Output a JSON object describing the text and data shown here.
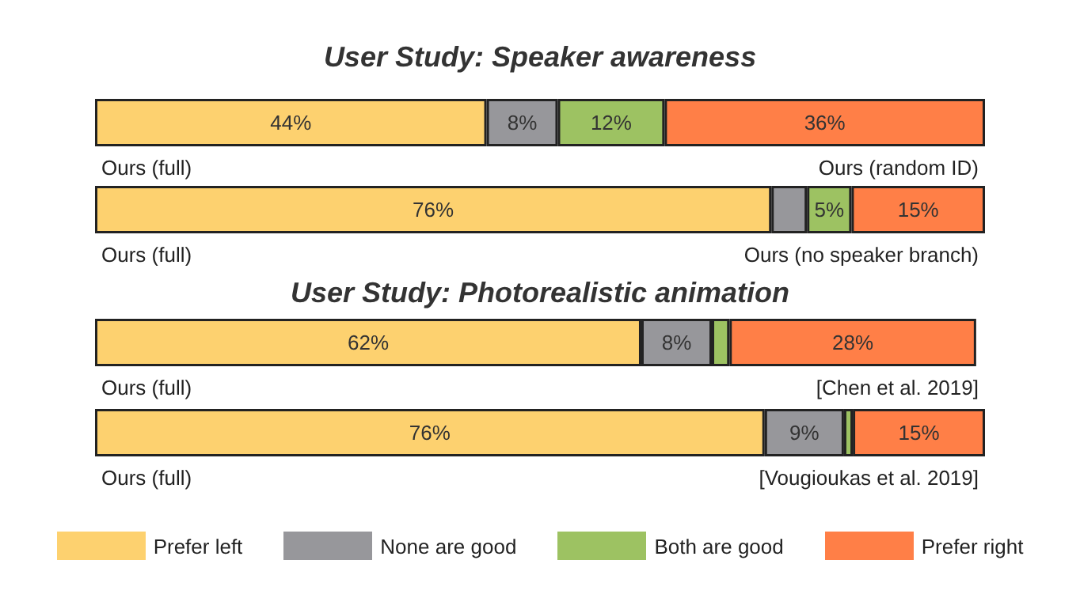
{
  "chart_data": [
    {
      "type": "bar",
      "title": "User Study: Speaker awareness",
      "orientation": "horizontal",
      "stacked": true,
      "categories": [
        null,
        null
      ],
      "xlim": [
        0,
        100
      ],
      "legend": false,
      "annotations": [
        "Ours (full)",
        "Ours (random ID)",
        "Ours (full)",
        "Ours (no speaker branch)"
      ],
      "series": [
        {
          "color": "#fdd16f",
          "values": [
            44,
            76
          ],
          "value_labels": [
            "44%",
            "76%"
          ]
        },
        {
          "color": "#97979b",
          "values": [
            8,
            4
          ],
          "value_labels": [
            "8%",
            null
          ]
        },
        {
          "color": "#9dc262",
          "values": [
            12,
            5
          ],
          "value_labels": [
            "12%",
            "5%"
          ]
        },
        {
          "color": "#ff7f47",
          "values": [
            36,
            15
          ],
          "value_labels": [
            "36%",
            "15%"
          ]
        }
      ]
    },
    {
      "type": "bar",
      "title": "User Study: Photorealistic animation",
      "orientation": "horizontal",
      "stacked": true,
      "categories": [
        null,
        null
      ],
      "xlim": [
        0,
        101
      ],
      "legend": "bottom",
      "annotations": [
        "Ours (full)",
        "[Chen et al. 2019]",
        "Ours (full)",
        "[Vougioukas et al. 2019]"
      ],
      "series": [
        {
          "name": "Prefer left",
          "color": "#fdd16f",
          "values": [
            62,
            76
          ],
          "value_labels": [
            "62%",
            "76%"
          ]
        },
        {
          "name": "None are good",
          "color": "#97979b",
          "values": [
            8,
            9
          ],
          "value_labels": [
            "8%",
            "9%"
          ]
        },
        {
          "name": "Both are good",
          "color": "#9dc262",
          "values": [
            2,
            1
          ],
          "value_labels": [
            null,
            null
          ]
        },
        {
          "name": "Prefer right",
          "color": "#ff7f47",
          "values": [
            28,
            15
          ],
          "value_labels": [
            "28%",
            "15%"
          ]
        }
      ]
    }
  ]
}
